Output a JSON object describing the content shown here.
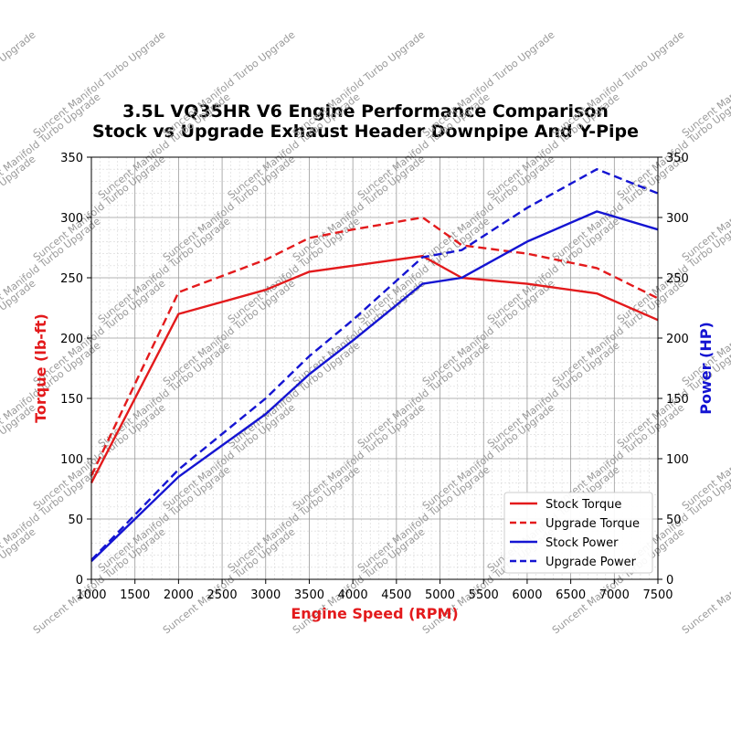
{
  "chart_data": {
    "type": "line",
    "title": "3.5L VQ35HR V6 Engine Performance Comparison",
    "subtitle": "Stock vs Upgrade Exhaust Header Downpipe And Y-Pipe",
    "xlabel": "Engine Speed (RPM)",
    "ylabel_left": "Torque (lb-ft)",
    "ylabel_right": "Power (HP)",
    "xlim": [
      1000,
      7500
    ],
    "ylim_left": [
      0,
      350
    ],
    "ylim_right": [
      0,
      350
    ],
    "x_ticks": [
      "1000",
      "1500",
      "2000",
      "2500",
      "3000",
      "3500",
      "4000",
      "4500",
      "5000",
      "5500",
      "6000",
      "6500",
      "7000",
      "7500"
    ],
    "y_ticks_left": [
      "0",
      "50",
      "100",
      "150",
      "200",
      "250",
      "300",
      "350"
    ],
    "y_ticks_right": [
      "0",
      "50",
      "100",
      "150",
      "200",
      "250",
      "300",
      "350"
    ],
    "grid": true,
    "legend_position": "lower-right",
    "watermark": "Suncent Manifold Turbo Upgrade",
    "colors": {
      "torque": "#e31a1c",
      "power": "#1414d2",
      "left_label": "#e31a1c",
      "right_label": "#1414d2"
    },
    "series": [
      {
        "name": "Stock Torque",
        "axis": "left",
        "style": "solid",
        "color": "#e31a1c",
        "x": [
          1000,
          2000,
          3000,
          3500,
          4000,
          4800,
          5250,
          6000,
          6800,
          7500
        ],
        "y": [
          80,
          220,
          240,
          255,
          260,
          268,
          250,
          245,
          237,
          215
        ]
      },
      {
        "name": "Upgrade Torque",
        "axis": "left",
        "style": "dashed",
        "color": "#e31a1c",
        "x": [
          1000,
          2000,
          3000,
          3500,
          4000,
          4800,
          5250,
          6000,
          6800,
          7500
        ],
        "y": [
          86,
          238,
          265,
          283,
          290,
          300,
          277,
          270,
          258,
          233
        ]
      },
      {
        "name": "Stock Power",
        "axis": "right",
        "style": "solid",
        "color": "#1414d2",
        "x": [
          1000,
          2000,
          3000,
          3500,
          4000,
          4800,
          5250,
          6000,
          6800,
          7500
        ],
        "y": [
          15,
          85,
          137,
          170,
          198,
          245,
          250,
          280,
          305,
          290
        ]
      },
      {
        "name": "Upgrade Power",
        "axis": "right",
        "style": "dashed",
        "color": "#1414d2",
        "x": [
          1000,
          2000,
          3000,
          3500,
          4000,
          4800,
          5250,
          6000,
          6800,
          7500
        ],
        "y": [
          16,
          91,
          150,
          185,
          215,
          267,
          273,
          308,
          340,
          320
        ]
      }
    ]
  }
}
